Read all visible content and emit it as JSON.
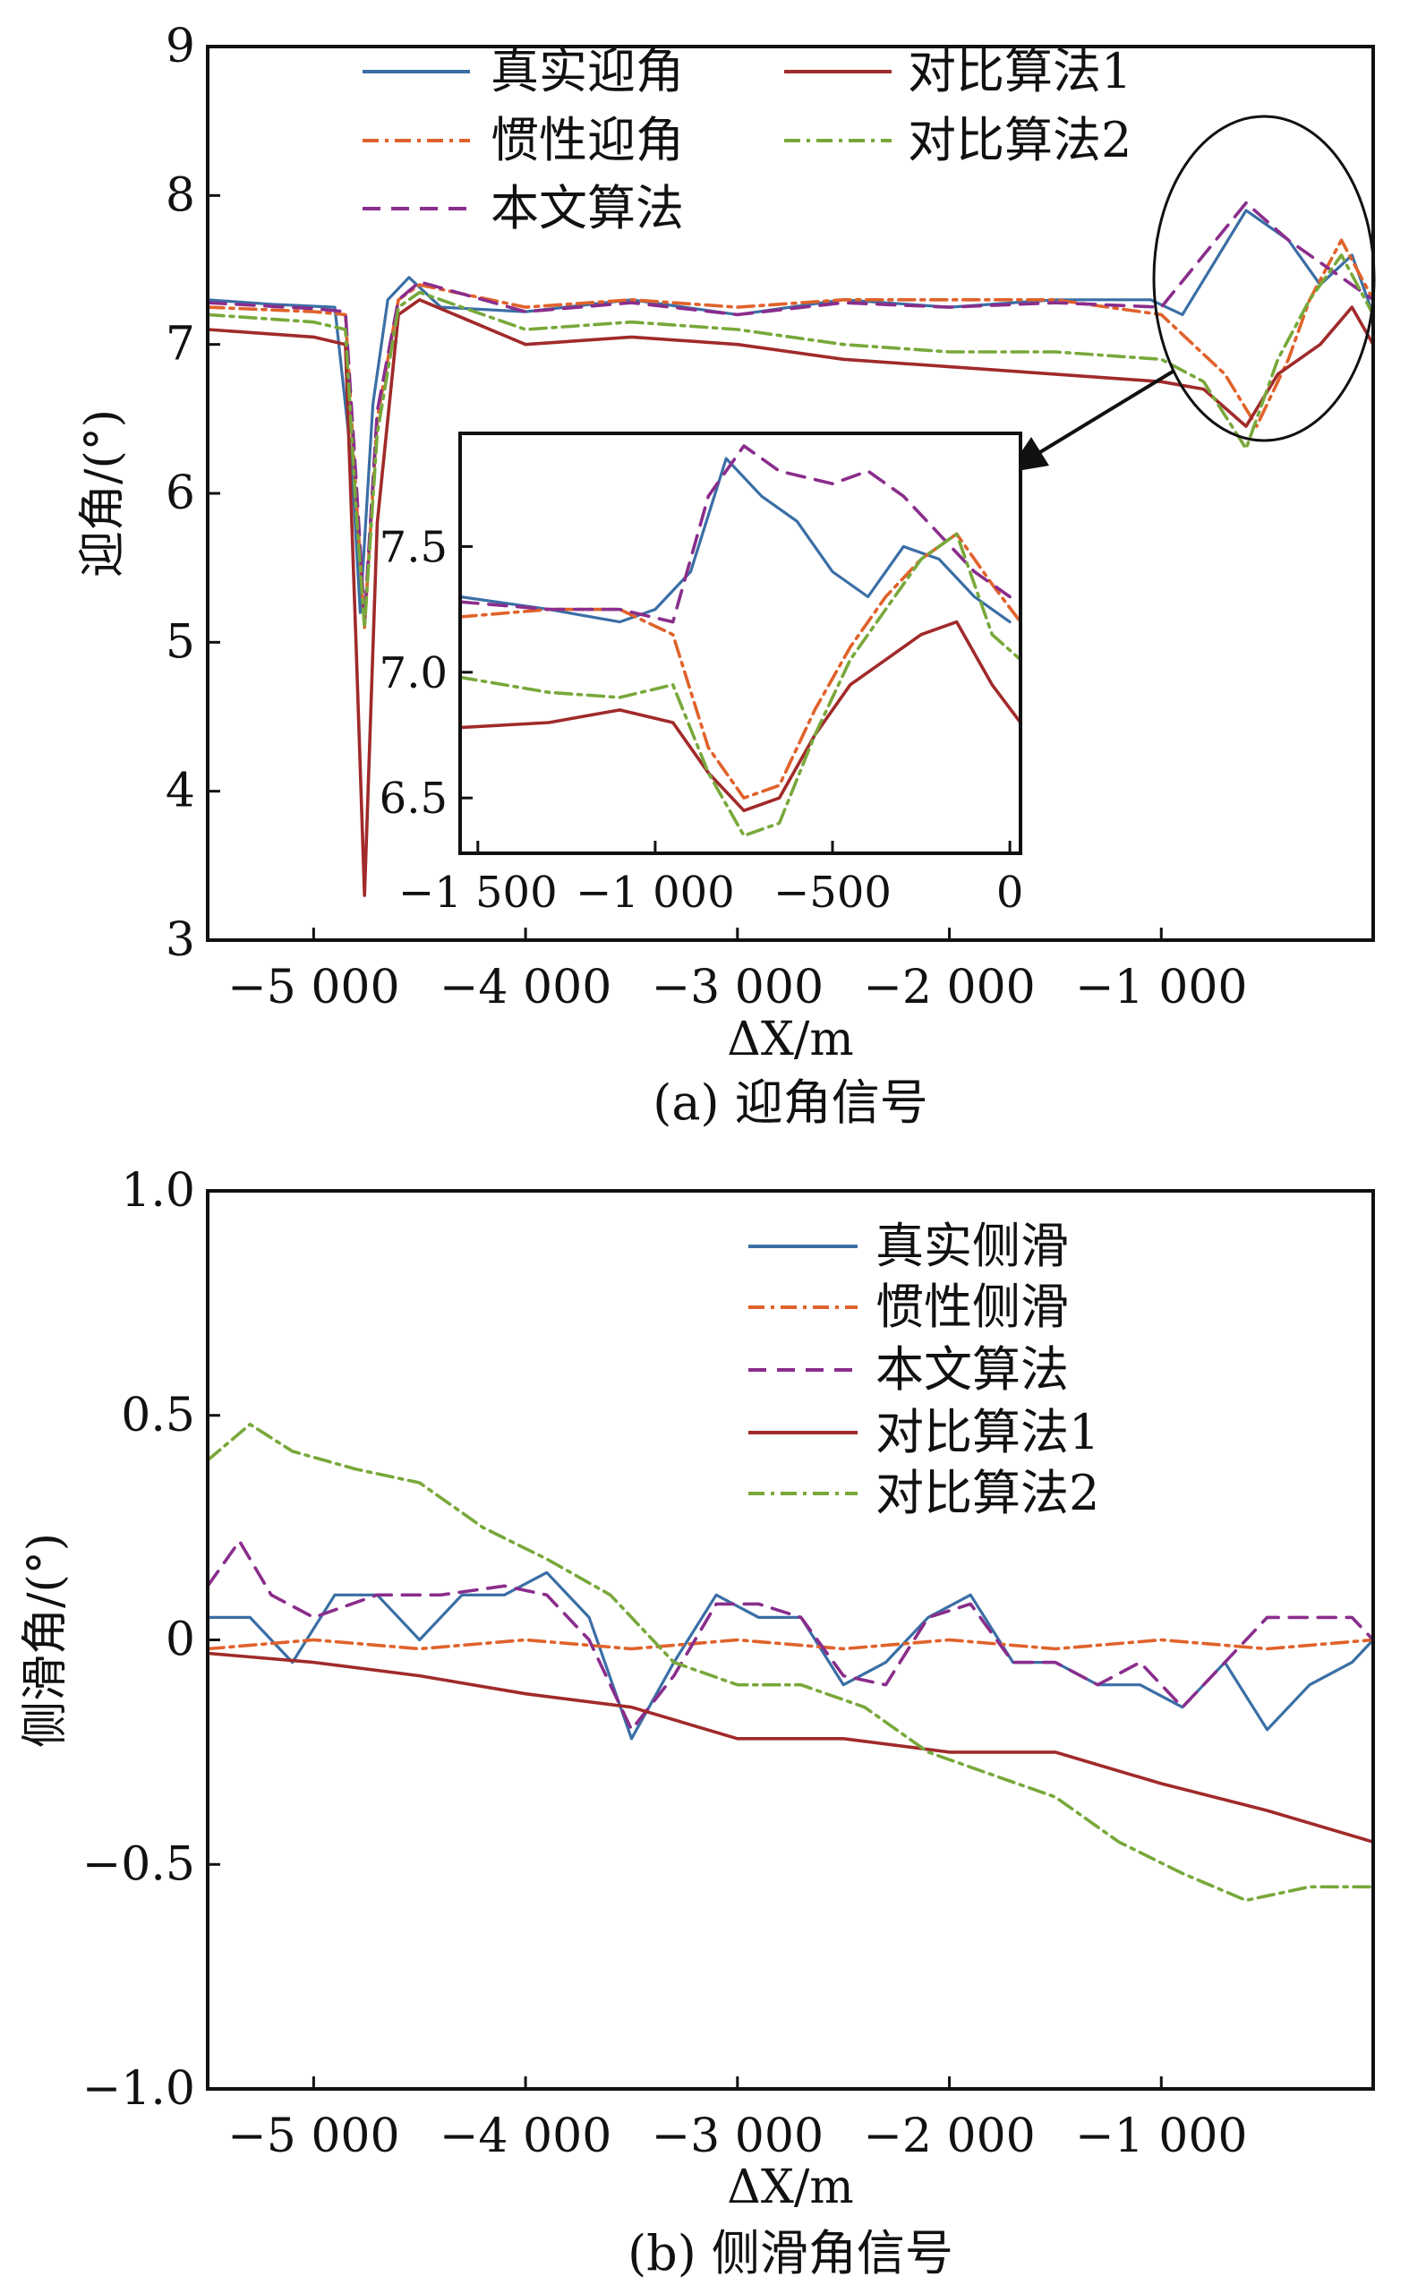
{
  "chart_data": [
    {
      "type": "line",
      "panel": "a",
      "caption": "(a) 迎角信号",
      "xlabel": "ΔX/m",
      "ylabel": "迎角/(°)",
      "xlim": [
        -5500,
        0
      ],
      "ylim": [
        3,
        9
      ],
      "xticks": [
        -5000,
        -4000,
        -3000,
        -2000,
        -1000
      ],
      "xtick_labels": [
        "−5 000",
        "−4 000",
        "−3 000",
        "−2 000",
        "−1 000"
      ],
      "yticks": [
        3,
        4,
        5,
        6,
        7,
        8,
        9
      ],
      "ytick_labels": [
        "3",
        "4",
        "5",
        "6",
        "7",
        "8",
        "9"
      ],
      "legend_location": "top",
      "series": [
        {
          "name": "真实迎角",
          "color": "#3a6ea5",
          "style": "solid",
          "x": [
            -5500,
            -5200,
            -4900,
            -4820,
            -4780,
            -4720,
            -4650,
            -4550,
            -4400,
            -4000,
            -3500,
            -3000,
            -2500,
            -2000,
            -1500,
            -1050,
            -900,
            -600,
            -400,
            -250,
            -100,
            0
          ],
          "y": [
            7.3,
            7.27,
            7.25,
            6.2,
            5.2,
            6.6,
            7.3,
            7.45,
            7.25,
            7.22,
            7.3,
            7.2,
            7.3,
            7.25,
            7.3,
            7.3,
            7.2,
            7.9,
            7.7,
            7.4,
            7.6,
            7.2
          ]
        },
        {
          "name": "惯性迎角",
          "color": "#e0622b",
          "style": "dashdot",
          "x": [
            -5500,
            -5000,
            -4850,
            -4800,
            -4760,
            -4700,
            -4600,
            -4500,
            -4000,
            -3500,
            -3000,
            -2500,
            -2000,
            -1500,
            -1000,
            -700,
            -550,
            -400,
            -300,
            -150,
            0
          ],
          "y": [
            7.25,
            7.22,
            7.2,
            6.0,
            5.1,
            6.5,
            7.3,
            7.4,
            7.25,
            7.3,
            7.25,
            7.3,
            7.3,
            7.3,
            7.2,
            6.8,
            6.45,
            6.9,
            7.3,
            7.7,
            7.3
          ]
        },
        {
          "name": "本文算法",
          "color": "#8a2d8c",
          "style": "dashed",
          "x": [
            -5500,
            -5000,
            -4850,
            -4800,
            -4760,
            -4700,
            -4600,
            -4500,
            -4000,
            -3500,
            -3000,
            -2500,
            -2000,
            -1500,
            -1000,
            -800,
            -600,
            -400,
            -200,
            0
          ],
          "y": [
            7.28,
            7.24,
            7.22,
            6.1,
            5.15,
            6.55,
            7.3,
            7.42,
            7.22,
            7.28,
            7.2,
            7.28,
            7.25,
            7.28,
            7.25,
            7.6,
            7.95,
            7.7,
            7.5,
            7.3
          ]
        },
        {
          "name": "对比算法1",
          "color": "#a12a2a",
          "style": "solid",
          "x": [
            -5500,
            -5000,
            -4850,
            -4800,
            -4760,
            -4700,
            -4600,
            -4500,
            -4000,
            -3500,
            -3000,
            -2500,
            -2000,
            -1500,
            -1000,
            -800,
            -600,
            -450,
            -250,
            -100,
            0
          ],
          "y": [
            7.1,
            7.05,
            7.0,
            5.0,
            3.3,
            5.8,
            7.2,
            7.3,
            7.0,
            7.05,
            7.0,
            6.9,
            6.85,
            6.8,
            6.75,
            6.7,
            6.45,
            6.8,
            7.0,
            7.25,
            7.0
          ]
        },
        {
          "name": "对比算法2",
          "color": "#78a83a",
          "style": "dashdot",
          "x": [
            -5500,
            -5000,
            -4850,
            -4800,
            -4760,
            -4700,
            -4600,
            -4500,
            -4000,
            -3500,
            -3000,
            -2500,
            -2000,
            -1500,
            -1000,
            -800,
            -600,
            -450,
            -300,
            -150,
            0
          ],
          "y": [
            7.2,
            7.15,
            7.1,
            5.9,
            5.1,
            6.4,
            7.25,
            7.35,
            7.1,
            7.15,
            7.1,
            7.0,
            6.95,
            6.95,
            6.9,
            6.75,
            6.3,
            6.9,
            7.3,
            7.6,
            7.2
          ]
        }
      ],
      "inset": {
        "xlim": [
          -1550,
          30
        ],
        "ylim": [
          6.28,
          7.95
        ],
        "xticks": [
          -1500,
          -1000,
          -500,
          0
        ],
        "xtick_labels": [
          "−1 500",
          "−1 000",
          "−500",
          "0"
        ],
        "yticks": [
          6.5,
          7.0,
          7.5
        ],
        "ytick_labels": [
          "6.5",
          "7.0",
          "7.5"
        ],
        "series": [
          {
            "name": "真实迎角",
            "x": [
              -1550,
              -1300,
              -1100,
              -1000,
              -900,
              -800,
              -700,
              -600,
              -500,
              -400,
              -300,
              -200,
              -100,
              0
            ],
            "y": [
              7.3,
              7.25,
              7.2,
              7.25,
              7.4,
              7.85,
              7.7,
              7.6,
              7.4,
              7.3,
              7.5,
              7.45,
              7.3,
              7.2
            ]
          },
          {
            "name": "惯性迎角",
            "x": [
              -1550,
              -1300,
              -1100,
              -950,
              -850,
              -750,
              -650,
              -550,
              -450,
              -350,
              -250,
              -150,
              -50,
              30
            ],
            "y": [
              7.22,
              7.25,
              7.25,
              7.15,
              6.7,
              6.5,
              6.55,
              6.85,
              7.1,
              7.3,
              7.45,
              7.55,
              7.35,
              7.2
            ]
          },
          {
            "name": "本文算法",
            "x": [
              -1550,
              -1300,
              -1100,
              -950,
              -850,
              -750,
              -650,
              -500,
              -400,
              -300,
              -200,
              -100,
              0
            ],
            "y": [
              7.28,
              7.25,
              7.25,
              7.2,
              7.7,
              7.9,
              7.8,
              7.75,
              7.8,
              7.7,
              7.55,
              7.4,
              7.3
            ]
          },
          {
            "name": "对比算法1",
            "x": [
              -1550,
              -1300,
              -1100,
              -950,
              -850,
              -750,
              -650,
              -550,
              -450,
              -350,
              -250,
              -150,
              -50,
              30
            ],
            "y": [
              6.78,
              6.8,
              6.85,
              6.8,
              6.6,
              6.45,
              6.5,
              6.75,
              6.95,
              7.05,
              7.15,
              7.2,
              6.95,
              6.8
            ]
          },
          {
            "name": "对比算法2",
            "x": [
              -1550,
              -1300,
              -1100,
              -950,
              -850,
              -750,
              -650,
              -550,
              -450,
              -350,
              -250,
              -150,
              -50,
              30
            ],
            "y": [
              6.98,
              6.92,
              6.9,
              6.95,
              6.6,
              6.35,
              6.4,
              6.75,
              7.05,
              7.25,
              7.45,
              7.55,
              7.15,
              7.05
            ]
          }
        ]
      }
    },
    {
      "type": "line",
      "panel": "b",
      "caption": "(b) 侧滑角信号",
      "xlabel": "ΔX/m",
      "ylabel": "侧滑角/(°)",
      "xlim": [
        -5500,
        0
      ],
      "ylim": [
        -1.0,
        1.0
      ],
      "xticks": [
        -5000,
        -4000,
        -3000,
        -2000,
        -1000
      ],
      "xtick_labels": [
        "−5 000",
        "−4 000",
        "−3 000",
        "−2 000",
        "−1 000"
      ],
      "yticks": [
        -1.0,
        -0.5,
        0,
        0.5,
        1.0
      ],
      "ytick_labels": [
        "−1.0",
        "−0.5",
        "0",
        "0.5",
        "1.0"
      ],
      "legend_location": "top-right",
      "series": [
        {
          "name": "真实侧滑",
          "color": "#3a6ea5",
          "style": "solid",
          "x": [
            -5500,
            -5300,
            -5100,
            -4900,
            -4700,
            -4500,
            -4300,
            -4100,
            -3900,
            -3700,
            -3500,
            -3300,
            -3100,
            -2900,
            -2700,
            -2500,
            -2300,
            -2100,
            -1900,
            -1700,
            -1500,
            -1300,
            -1100,
            -900,
            -700,
            -500,
            -300,
            -100,
            0
          ],
          "y": [
            0.05,
            0.05,
            -0.05,
            0.1,
            0.1,
            0.0,
            0.1,
            0.1,
            0.15,
            0.05,
            -0.22,
            -0.05,
            0.1,
            0.05,
            0.05,
            -0.1,
            -0.05,
            0.05,
            0.1,
            -0.05,
            -0.05,
            -0.1,
            -0.1,
            -0.15,
            -0.05,
            -0.2,
            -0.1,
            -0.05,
            0.0
          ]
        },
        {
          "name": "惯性侧滑",
          "color": "#e0622b",
          "style": "dashdot",
          "x": [
            -5500,
            -5000,
            -4500,
            -4000,
            -3500,
            -3000,
            -2500,
            -2000,
            -1500,
            -1000,
            -500,
            0
          ],
          "y": [
            -0.02,
            0.0,
            -0.02,
            0.0,
            -0.02,
            0.0,
            -0.02,
            0.0,
            -0.02,
            0.0,
            -0.02,
            0.0
          ]
        },
        {
          "name": "本文算法",
          "color": "#8a2d8c",
          "style": "dashed",
          "x": [
            -5500,
            -5350,
            -5200,
            -5000,
            -4700,
            -4400,
            -4100,
            -3900,
            -3700,
            -3500,
            -3300,
            -3100,
            -2900,
            -2700,
            -2500,
            -2300,
            -2100,
            -1900,
            -1700,
            -1500,
            -1300,
            -1100,
            -900,
            -700,
            -500,
            -300,
            -100,
            0
          ],
          "y": [
            0.12,
            0.22,
            0.1,
            0.05,
            0.1,
            0.1,
            0.12,
            0.1,
            0.0,
            -0.2,
            -0.08,
            0.08,
            0.08,
            0.05,
            -0.08,
            -0.1,
            0.05,
            0.08,
            -0.05,
            -0.05,
            -0.1,
            -0.05,
            -0.15,
            -0.05,
            0.05,
            0.05,
            0.05,
            0.0
          ]
        },
        {
          "name": "对比算法1",
          "color": "#a12a2a",
          "style": "solid",
          "x": [
            -5500,
            -5000,
            -4500,
            -4000,
            -3500,
            -3000,
            -2500,
            -2000,
            -1500,
            -1000,
            -500,
            0
          ],
          "y": [
            -0.03,
            -0.05,
            -0.08,
            -0.12,
            -0.15,
            -0.22,
            -0.22,
            -0.25,
            -0.25,
            -0.32,
            -0.38,
            -0.45
          ]
        },
        {
          "name": "对比算法2",
          "color": "#78a83a",
          "style": "dashdot",
          "x": [
            -5500,
            -5300,
            -5100,
            -4800,
            -4500,
            -4200,
            -3900,
            -3600,
            -3300,
            -3000,
            -2700,
            -2400,
            -2100,
            -1800,
            -1500,
            -1200,
            -900,
            -600,
            -300,
            0
          ],
          "y": [
            0.4,
            0.48,
            0.42,
            0.38,
            0.35,
            0.25,
            0.18,
            0.1,
            -0.05,
            -0.1,
            -0.1,
            -0.15,
            -0.25,
            -0.3,
            -0.35,
            -0.45,
            -0.52,
            -0.58,
            -0.55,
            -0.55
          ]
        }
      ]
    }
  ]
}
